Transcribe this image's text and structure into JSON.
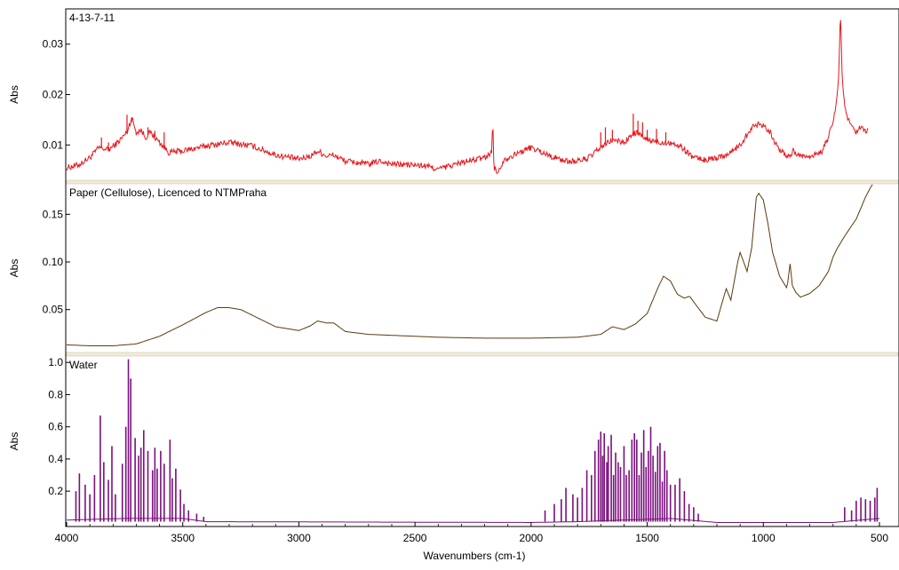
{
  "chart_data": {
    "type": "line",
    "xlabel": "Wavenumbers (cm-1)",
    "x_range": [
      4000,
      500
    ],
    "x_reversed": true,
    "x_ticks": [
      4000,
      3500,
      3000,
      2500,
      2000,
      1500,
      1000,
      500
    ],
    "panels": [
      {
        "label": "4-13-7-11",
        "ylabel": "Abs",
        "color": "#e8161b",
        "ylim": [
          0.003,
          0.037
        ],
        "y_ticks": [
          0.01,
          0.02,
          0.03
        ],
        "y_tick_labels": [
          "0.01",
          "0.02",
          "0.03"
        ],
        "noise": 0.0012,
        "points": [
          [
            4000,
            0.0055
          ],
          [
            3950,
            0.006
          ],
          [
            3900,
            0.0075
          ],
          [
            3860,
            0.0095
          ],
          [
            3820,
            0.009
          ],
          [
            3780,
            0.0105
          ],
          [
            3740,
            0.0125
          ],
          [
            3720,
            0.0155
          ],
          [
            3700,
            0.0125
          ],
          [
            3680,
            0.013
          ],
          [
            3660,
            0.0115
          ],
          [
            3640,
            0.0125
          ],
          [
            3620,
            0.0115
          ],
          [
            3600,
            0.0105
          ],
          [
            3560,
            0.0085
          ],
          [
            3500,
            0.0088
          ],
          [
            3400,
            0.0098
          ],
          [
            3300,
            0.0105
          ],
          [
            3200,
            0.0098
          ],
          [
            3100,
            0.008
          ],
          [
            3000,
            0.0072
          ],
          [
            2950,
            0.0078
          ],
          [
            2920,
            0.0088
          ],
          [
            2880,
            0.0078
          ],
          [
            2850,
            0.008
          ],
          [
            2800,
            0.0068
          ],
          [
            2700,
            0.0062
          ],
          [
            2650,
            0.0068
          ],
          [
            2600,
            0.0062
          ],
          [
            2500,
            0.006
          ],
          [
            2450,
            0.0058
          ],
          [
            2400,
            0.0052
          ],
          [
            2300,
            0.0065
          ],
          [
            2200,
            0.0075
          ],
          [
            2170,
            0.0085
          ],
          [
            2165,
            0.015
          ],
          [
            2160,
            0.0055
          ],
          [
            2140,
            0.0045
          ],
          [
            2120,
            0.007
          ],
          [
            2100,
            0.0075
          ],
          [
            2050,
            0.0085
          ],
          [
            2000,
            0.0095
          ],
          [
            1950,
            0.0085
          ],
          [
            1900,
            0.0075
          ],
          [
            1850,
            0.0068
          ],
          [
            1800,
            0.0068
          ],
          [
            1750,
            0.0075
          ],
          [
            1700,
            0.0095
          ],
          [
            1650,
            0.011
          ],
          [
            1600,
            0.0105
          ],
          [
            1550,
            0.0125
          ],
          [
            1500,
            0.011
          ],
          [
            1450,
            0.0105
          ],
          [
            1400,
            0.0105
          ],
          [
            1350,
            0.0095
          ],
          [
            1300,
            0.0075
          ],
          [
            1250,
            0.007
          ],
          [
            1200,
            0.0075
          ],
          [
            1150,
            0.0082
          ],
          [
            1100,
            0.01
          ],
          [
            1050,
            0.0135
          ],
          [
            1020,
            0.0142
          ],
          [
            1000,
            0.014
          ],
          [
            970,
            0.0125
          ],
          [
            940,
            0.0095
          ],
          [
            900,
            0.0078
          ],
          [
            880,
            0.008
          ],
          [
            870,
            0.0092
          ],
          [
            860,
            0.008
          ],
          [
            800,
            0.0078
          ],
          [
            750,
            0.0085
          ],
          [
            720,
            0.0115
          ],
          [
            700,
            0.0145
          ],
          [
            685,
            0.0185
          ],
          [
            675,
            0.024
          ],
          [
            668,
            0.037
          ],
          [
            660,
            0.023
          ],
          [
            650,
            0.0175
          ],
          [
            640,
            0.0155
          ],
          [
            620,
            0.0135
          ],
          [
            600,
            0.0125
          ],
          [
            580,
            0.0135
          ],
          [
            560,
            0.0125
          ],
          [
            550,
            0.013
          ]
        ],
        "spikes": [
          [
            3850,
            0.0115
          ],
          [
            3820,
            0.0105
          ],
          [
            3740,
            0.016
          ],
          [
            3720,
            0.0145
          ],
          [
            3650,
            0.0135
          ],
          [
            3620,
            0.0128
          ],
          [
            3580,
            0.0125
          ],
          [
            2000,
            0.0098
          ],
          [
            1700,
            0.0125
          ],
          [
            1680,
            0.0135
          ],
          [
            1650,
            0.013
          ],
          [
            1560,
            0.0162
          ],
          [
            1540,
            0.0148
          ],
          [
            1520,
            0.0145
          ],
          [
            1500,
            0.013
          ],
          [
            1460,
            0.0132
          ],
          [
            1420,
            0.0125
          ]
        ]
      },
      {
        "label": "Paper (Cellulose), Licenced to NTMPraha",
        "ylabel": "Abs",
        "color": "#5b3a0c",
        "ylim": [
          0.005,
          0.182
        ],
        "y_ticks": [
          0.05,
          0.1,
          0.15
        ],
        "y_tick_labels": [
          "0.05",
          "0.10",
          "0.15"
        ],
        "noise": 0,
        "points": [
          [
            4000,
            0.013
          ],
          [
            3900,
            0.012
          ],
          [
            3800,
            0.012
          ],
          [
            3700,
            0.014
          ],
          [
            3600,
            0.022
          ],
          [
            3500,
            0.034
          ],
          [
            3400,
            0.047
          ],
          [
            3350,
            0.052
          ],
          [
            3300,
            0.052
          ],
          [
            3250,
            0.05
          ],
          [
            3200,
            0.044
          ],
          [
            3100,
            0.032
          ],
          [
            3000,
            0.028
          ],
          [
            2950,
            0.033
          ],
          [
            2920,
            0.038
          ],
          [
            2880,
            0.036
          ],
          [
            2850,
            0.036
          ],
          [
            2800,
            0.027
          ],
          [
            2700,
            0.024
          ],
          [
            2600,
            0.023
          ],
          [
            2400,
            0.021
          ],
          [
            2200,
            0.02
          ],
          [
            2000,
            0.02
          ],
          [
            1800,
            0.021
          ],
          [
            1700,
            0.024
          ],
          [
            1650,
            0.032
          ],
          [
            1600,
            0.029
          ],
          [
            1550,
            0.035
          ],
          [
            1500,
            0.046
          ],
          [
            1450,
            0.075
          ],
          [
            1430,
            0.085
          ],
          [
            1400,
            0.08
          ],
          [
            1370,
            0.066
          ],
          [
            1340,
            0.062
          ],
          [
            1317,
            0.064
          ],
          [
            1300,
            0.058
          ],
          [
            1250,
            0.042
          ],
          [
            1200,
            0.038
          ],
          [
            1160,
            0.072
          ],
          [
            1140,
            0.06
          ],
          [
            1110,
            0.1
          ],
          [
            1100,
            0.11
          ],
          [
            1070,
            0.09
          ],
          [
            1050,
            0.115
          ],
          [
            1030,
            0.168
          ],
          [
            1020,
            0.172
          ],
          [
            1000,
            0.165
          ],
          [
            980,
            0.14
          ],
          [
            960,
            0.11
          ],
          [
            930,
            0.085
          ],
          [
            900,
            0.073
          ],
          [
            895,
            0.078
          ],
          [
            885,
            0.098
          ],
          [
            875,
            0.075
          ],
          [
            860,
            0.068
          ],
          [
            840,
            0.063
          ],
          [
            800,
            0.067
          ],
          [
            760,
            0.075
          ],
          [
            720,
            0.09
          ],
          [
            700,
            0.105
          ],
          [
            680,
            0.115
          ],
          [
            650,
            0.127
          ],
          [
            600,
            0.145
          ],
          [
            560,
            0.168
          ],
          [
            530,
            0.182
          ]
        ],
        "spikes": []
      },
      {
        "label": "Water",
        "ylabel": "Abs",
        "color": "#7a107e",
        "ylim": [
          -0.02,
          1.04
        ],
        "y_ticks": [
          0.2,
          0.4,
          0.6,
          0.8,
          1.0
        ],
        "y_tick_labels": [
          "0.2",
          "0.4",
          "0.6",
          "0.8",
          "1.0"
        ],
        "noise": 0,
        "points": [
          [
            4000,
            0.02
          ],
          [
            3750,
            0.03
          ],
          [
            3500,
            0.03
          ],
          [
            3400,
            0.01
          ],
          [
            2000,
            0.005
          ],
          [
            1800,
            0.01
          ],
          [
            1400,
            0.03
          ],
          [
            1200,
            0.005
          ],
          [
            700,
            0.005
          ],
          [
            500,
            0.03
          ]
        ],
        "spikes": [
          [
            3960,
            0.2
          ],
          [
            3945,
            0.31
          ],
          [
            3920,
            0.24
          ],
          [
            3900,
            0.18
          ],
          [
            3880,
            0.3
          ],
          [
            3855,
            0.67
          ],
          [
            3840,
            0.38
          ],
          [
            3820,
            0.27
          ],
          [
            3805,
            0.48
          ],
          [
            3790,
            0.18
          ],
          [
            3760,
            0.37
          ],
          [
            3745,
            0.6
          ],
          [
            3734,
            1.02
          ],
          [
            3724,
            0.9
          ],
          [
            3705,
            0.53
          ],
          [
            3690,
            0.42
          ],
          [
            3680,
            0.47
          ],
          [
            3668,
            0.58
          ],
          [
            3650,
            0.45
          ],
          [
            3630,
            0.33
          ],
          [
            3620,
            0.47
          ],
          [
            3610,
            0.34
          ],
          [
            3595,
            0.45
          ],
          [
            3580,
            0.37
          ],
          [
            3555,
            0.52
          ],
          [
            3545,
            0.28
          ],
          [
            3530,
            0.34
          ],
          [
            3510,
            0.21
          ],
          [
            3495,
            0.12
          ],
          [
            3475,
            0.08
          ],
          [
            3440,
            0.06
          ],
          [
            3410,
            0.04
          ],
          [
            1940,
            0.08
          ],
          [
            1900,
            0.12
          ],
          [
            1870,
            0.15
          ],
          [
            1850,
            0.22
          ],
          [
            1820,
            0.18
          ],
          [
            1800,
            0.16
          ],
          [
            1780,
            0.22
          ],
          [
            1760,
            0.33
          ],
          [
            1740,
            0.3
          ],
          [
            1725,
            0.45
          ],
          [
            1710,
            0.52
          ],
          [
            1700,
            0.57
          ],
          [
            1692,
            0.42
          ],
          [
            1685,
            0.56
          ],
          [
            1674,
            0.38
          ],
          [
            1668,
            0.48
          ],
          [
            1655,
            0.55
          ],
          [
            1645,
            0.3
          ],
          [
            1636,
            0.44
          ],
          [
            1625,
            0.38
          ],
          [
            1615,
            0.35
          ],
          [
            1600,
            0.48
          ],
          [
            1590,
            0.3
          ],
          [
            1578,
            0.33
          ],
          [
            1566,
            0.52
          ],
          [
            1555,
            0.56
          ],
          [
            1545,
            0.52
          ],
          [
            1535,
            0.3
          ],
          [
            1525,
            0.44
          ],
          [
            1515,
            0.58
          ],
          [
            1505,
            0.35
          ],
          [
            1495,
            0.45
          ],
          [
            1485,
            0.6
          ],
          [
            1475,
            0.42
          ],
          [
            1465,
            0.32
          ],
          [
            1455,
            0.48
          ],
          [
            1445,
            0.5
          ],
          [
            1435,
            0.26
          ],
          [
            1425,
            0.45
          ],
          [
            1415,
            0.33
          ],
          [
            1400,
            0.24
          ],
          [
            1380,
            0.24
          ],
          [
            1360,
            0.28
          ],
          [
            1340,
            0.2
          ],
          [
            1320,
            0.12
          ],
          [
            1300,
            0.1
          ],
          [
            1280,
            0.06
          ],
          [
            650,
            0.1
          ],
          [
            620,
            0.08
          ],
          [
            600,
            0.14
          ],
          [
            580,
            0.16
          ],
          [
            560,
            0.15
          ],
          [
            540,
            0.14
          ],
          [
            520,
            0.16
          ],
          [
            510,
            0.22
          ]
        ]
      }
    ]
  }
}
